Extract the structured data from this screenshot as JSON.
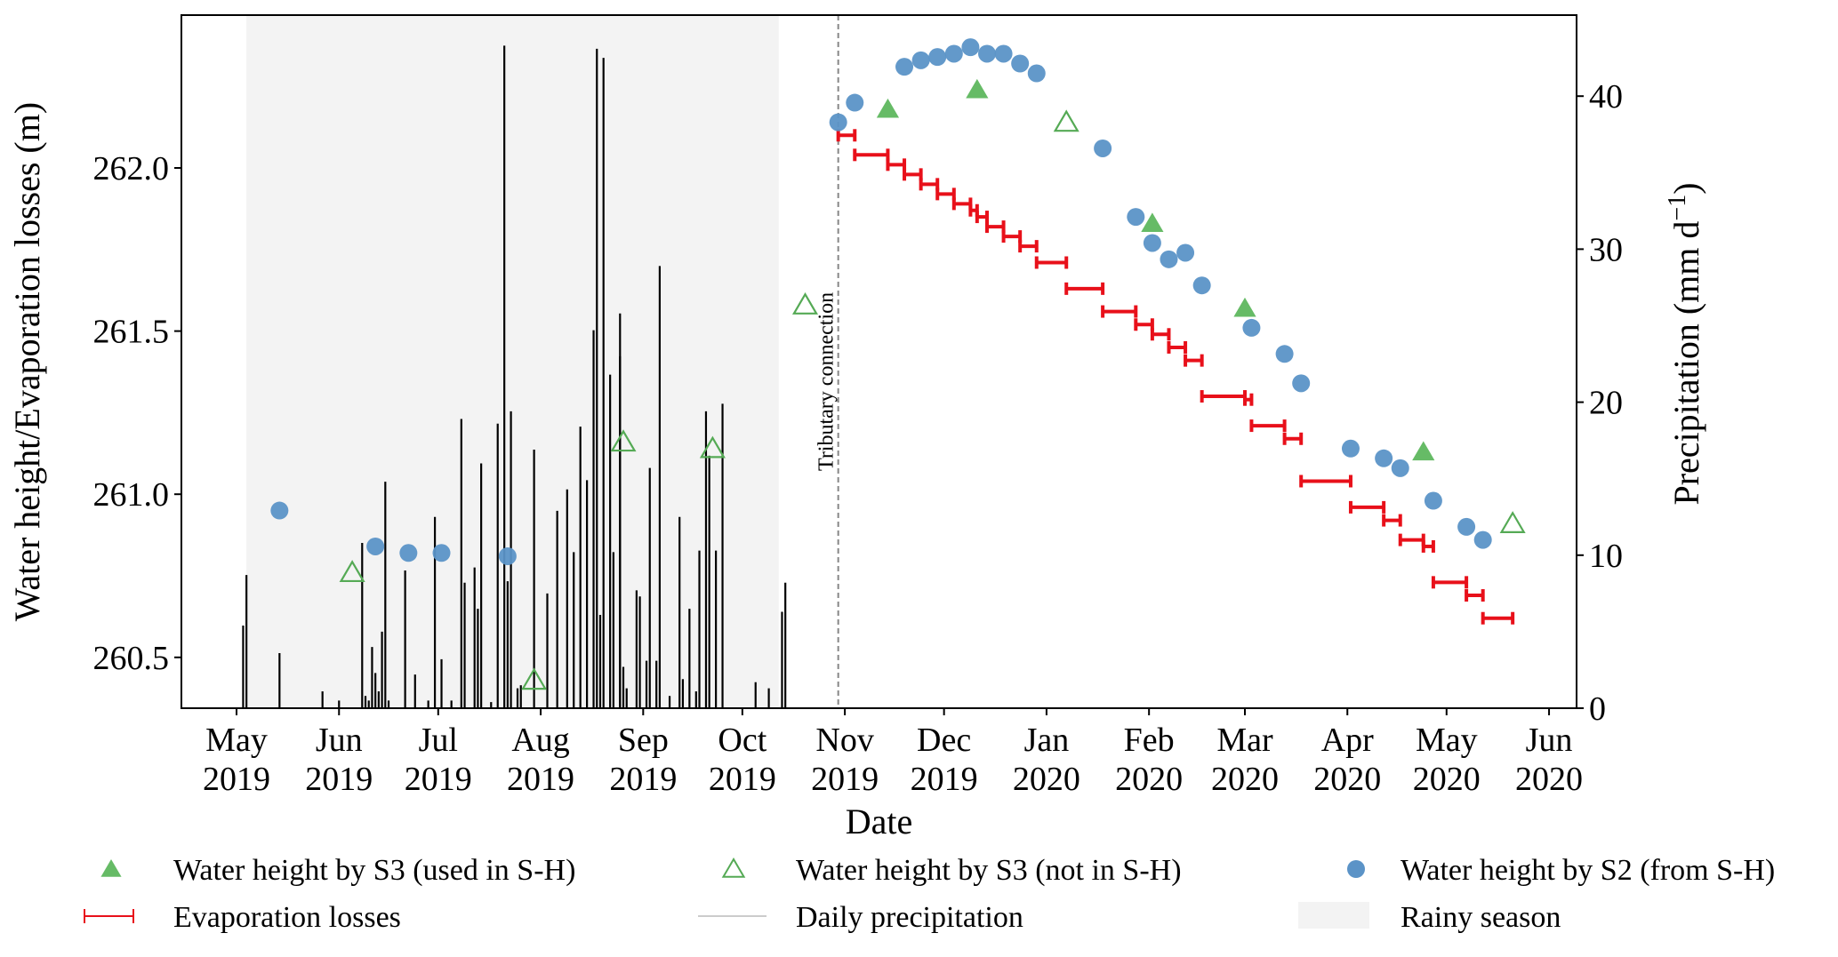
{
  "chart_data": {
    "type": "scatter",
    "title": "",
    "xlabel": "Date",
    "ylabel_left": "Water height/Evaporation losses (m)",
    "ylabel_right": "Precipitation (mm d⁻¹)",
    "ylabel_right_base": "Precipitation (mm d",
    "ylabel_right_sup": "−1",
    "ylabel_right_close": ")",
    "xlim": [
      "2019-04-21",
      "2020-06-09"
    ],
    "ylim_left": [
      260.35,
      262.37
    ],
    "ylim_right": [
      0,
      45
    ],
    "grid": false,
    "x_ticks": [
      {
        "date": "2019-05-01",
        "label1": "May",
        "label2": "2019"
      },
      {
        "date": "2019-06-01",
        "label1": "Jun",
        "label2": "2019"
      },
      {
        "date": "2019-07-01",
        "label1": "Jul",
        "label2": "2019"
      },
      {
        "date": "2019-08-01",
        "label1": "Aug",
        "label2": "2019"
      },
      {
        "date": "2019-09-01",
        "label1": "Sep",
        "label2": "2019"
      },
      {
        "date": "2019-10-01",
        "label1": "Oct",
        "label2": "2019"
      },
      {
        "date": "2019-11-01",
        "label1": "Nov",
        "label2": "2019"
      },
      {
        "date": "2019-12-01",
        "label1": "Dec",
        "label2": "2019"
      },
      {
        "date": "2020-01-01",
        "label1": "Jan",
        "label2": "2020"
      },
      {
        "date": "2020-02-01",
        "label1": "Feb",
        "label2": "2020"
      },
      {
        "date": "2020-03-01",
        "label1": "Mar",
        "label2": "2020"
      },
      {
        "date": "2020-04-01",
        "label1": "Apr",
        "label2": "2020"
      },
      {
        "date": "2020-05-01",
        "label1": "May",
        "label2": "2020"
      },
      {
        "date": "2020-06-01",
        "label1": "Jun",
        "label2": "2020"
      }
    ],
    "y_ticks_left": [
      {
        "value": 260.5,
        "label": "260.5"
      },
      {
        "value": 261.0,
        "label": "261.0"
      },
      {
        "value": 261.5,
        "label": "261.5"
      },
      {
        "value": 262.0,
        "label": "262.0"
      }
    ],
    "y_ticks_right": [
      {
        "value": 0,
        "label": "0"
      },
      {
        "value": 10,
        "label": "10"
      },
      {
        "value": 20,
        "label": "20"
      },
      {
        "value": 30,
        "label": "30"
      },
      {
        "value": 40,
        "label": "40"
      }
    ],
    "rainy_season": {
      "start": "2019-05-04",
      "end": "2019-10-12",
      "color": "#f3f3f3"
    },
    "annotation": {
      "date": "2019-10-30",
      "label": "Tributary connection"
    },
    "colors": {
      "s3_used": "#66bb66",
      "s3_not": "#55aa55",
      "s2": "#5b93c7",
      "evap": "#e8101a",
      "precip": "#000000",
      "legend_precip": "#cccccc"
    },
    "series": [
      {
        "name": "Water height by S3 (used in S-H)",
        "marker": "triangle-filled",
        "axis": "left",
        "points": [
          {
            "date": "2019-11-14",
            "value": 262.18
          },
          {
            "date": "2019-12-11",
            "value": 262.24
          },
          {
            "date": "2020-02-02",
            "value": 261.83
          },
          {
            "date": "2020-03-01",
            "value": 261.57
          },
          {
            "date": "2020-04-24",
            "value": 261.13
          }
        ]
      },
      {
        "name": "Water height by S3 (not in S-H)",
        "marker": "triangle-open",
        "axis": "left",
        "points": [
          {
            "date": "2019-06-05",
            "value": 260.76
          },
          {
            "date": "2019-07-30",
            "value": 260.43
          },
          {
            "date": "2019-08-26",
            "value": 261.16
          },
          {
            "date": "2019-09-22",
            "value": 261.14
          },
          {
            "date": "2019-10-20",
            "value": 261.58
          },
          {
            "date": "2020-01-07",
            "value": 262.14
          },
          {
            "date": "2020-05-21",
            "value": 260.91
          }
        ]
      },
      {
        "name": "Water height by S2 (from S-H)",
        "marker": "circle",
        "axis": "left",
        "points": [
          {
            "date": "2019-05-14",
            "value": 260.95
          },
          {
            "date": "2019-06-12",
            "value": 260.84
          },
          {
            "date": "2019-06-22",
            "value": 260.82
          },
          {
            "date": "2019-07-02",
            "value": 260.82
          },
          {
            "date": "2019-07-22",
            "value": 260.81
          },
          {
            "date": "2019-10-30",
            "value": 262.14
          },
          {
            "date": "2019-11-04",
            "value": 262.2
          },
          {
            "date": "2019-11-19",
            "value": 262.31
          },
          {
            "date": "2019-11-24",
            "value": 262.33
          },
          {
            "date": "2019-11-29",
            "value": 262.34
          },
          {
            "date": "2019-12-04",
            "value": 262.35
          },
          {
            "date": "2019-12-09",
            "value": 262.37
          },
          {
            "date": "2019-12-14",
            "value": 262.35
          },
          {
            "date": "2019-12-19",
            "value": 262.35
          },
          {
            "date": "2019-12-24",
            "value": 262.32
          },
          {
            "date": "2019-12-29",
            "value": 262.29
          },
          {
            "date": "2020-01-18",
            "value": 262.06
          },
          {
            "date": "2020-01-28",
            "value": 261.85
          },
          {
            "date": "2020-02-02",
            "value": 261.77
          },
          {
            "date": "2020-02-07",
            "value": 261.72
          },
          {
            "date": "2020-02-12",
            "value": 261.74
          },
          {
            "date": "2020-02-17",
            "value": 261.64
          },
          {
            "date": "2020-03-03",
            "value": 261.51
          },
          {
            "date": "2020-03-13",
            "value": 261.43
          },
          {
            "date": "2020-03-18",
            "value": 261.34
          },
          {
            "date": "2020-04-02",
            "value": 261.14
          },
          {
            "date": "2020-04-12",
            "value": 261.11
          },
          {
            "date": "2020-04-17",
            "value": 261.08
          },
          {
            "date": "2020-04-27",
            "value": 260.98
          },
          {
            "date": "2020-05-07",
            "value": 260.9
          },
          {
            "date": "2020-05-12",
            "value": 260.86
          }
        ]
      },
      {
        "name": "Evaporation losses",
        "marker": "range",
        "axis": "left",
        "ranges": [
          {
            "start": "2019-10-30",
            "end": "2019-11-04",
            "value": 262.1
          },
          {
            "start": "2019-11-04",
            "end": "2019-11-14",
            "value": 262.04
          },
          {
            "start": "2019-11-14",
            "end": "2019-11-19",
            "value": 262.01
          },
          {
            "start": "2019-11-19",
            "end": "2019-11-24",
            "value": 261.98
          },
          {
            "start": "2019-11-24",
            "end": "2019-11-29",
            "value": 261.95
          },
          {
            "start": "2019-11-29",
            "end": "2019-12-04",
            "value": 261.92
          },
          {
            "start": "2019-12-04",
            "end": "2019-12-09",
            "value": 261.89
          },
          {
            "start": "2019-12-09",
            "end": "2019-12-11",
            "value": 261.87
          },
          {
            "start": "2019-12-11",
            "end": "2019-12-14",
            "value": 261.85
          },
          {
            "start": "2019-12-14",
            "end": "2019-12-19",
            "value": 261.82
          },
          {
            "start": "2019-12-19",
            "end": "2019-12-24",
            "value": 261.79
          },
          {
            "start": "2019-12-24",
            "end": "2019-12-29",
            "value": 261.76
          },
          {
            "start": "2019-12-29",
            "end": "2020-01-07",
            "value": 261.71
          },
          {
            "start": "2020-01-07",
            "end": "2020-01-18",
            "value": 261.63
          },
          {
            "start": "2020-01-18",
            "end": "2020-01-28",
            "value": 261.56
          },
          {
            "start": "2020-01-28",
            "end": "2020-02-02",
            "value": 261.52
          },
          {
            "start": "2020-02-02",
            "end": "2020-02-07",
            "value": 261.49
          },
          {
            "start": "2020-02-07",
            "end": "2020-02-12",
            "value": 261.45
          },
          {
            "start": "2020-02-12",
            "end": "2020-02-17",
            "value": 261.41
          },
          {
            "start": "2020-02-17",
            "end": "2020-03-01",
            "value": 261.3
          },
          {
            "start": "2020-03-01",
            "end": "2020-03-03",
            "value": 261.29
          },
          {
            "start": "2020-03-03",
            "end": "2020-03-13",
            "value": 261.21
          },
          {
            "start": "2020-03-13",
            "end": "2020-03-18",
            "value": 261.17
          },
          {
            "start": "2020-03-18",
            "end": "2020-04-02",
            "value": 261.04
          },
          {
            "start": "2020-04-02",
            "end": "2020-04-12",
            "value": 260.96
          },
          {
            "start": "2020-04-12",
            "end": "2020-04-17",
            "value": 260.92
          },
          {
            "start": "2020-04-17",
            "end": "2020-04-24",
            "value": 260.86
          },
          {
            "start": "2020-04-24",
            "end": "2020-04-27",
            "value": 260.84
          },
          {
            "start": "2020-04-27",
            "end": "2020-05-07",
            "value": 260.73
          },
          {
            "start": "2020-05-07",
            "end": "2020-05-12",
            "value": 260.69
          },
          {
            "start": "2020-05-12",
            "end": "2020-05-21",
            "value": 260.62
          }
        ]
      },
      {
        "name": "Daily precipitation",
        "marker": "stem",
        "axis": "right",
        "points": [
          {
            "date": "2019-05-03",
            "value": 5.4
          },
          {
            "date": "2019-05-04",
            "value": 8.7
          },
          {
            "date": "2019-05-14",
            "value": 3.6
          },
          {
            "date": "2019-05-27",
            "value": 1.1
          },
          {
            "date": "2019-06-01",
            "value": 0.5
          },
          {
            "date": "2019-06-08",
            "value": 10.8
          },
          {
            "date": "2019-06-09",
            "value": 0.8
          },
          {
            "date": "2019-06-10",
            "value": 0.5
          },
          {
            "date": "2019-06-11",
            "value": 4.0
          },
          {
            "date": "2019-06-12",
            "value": 2.3
          },
          {
            "date": "2019-06-13",
            "value": 1.1
          },
          {
            "date": "2019-06-14",
            "value": 5.0
          },
          {
            "date": "2019-06-15",
            "value": 14.8
          },
          {
            "date": "2019-06-16",
            "value": 0.5
          },
          {
            "date": "2019-06-21",
            "value": 9.0
          },
          {
            "date": "2019-06-24",
            "value": 2.2
          },
          {
            "date": "2019-06-28",
            "value": 0.5
          },
          {
            "date": "2019-06-30",
            "value": 12.5
          },
          {
            "date": "2019-07-02",
            "value": 3.2
          },
          {
            "date": "2019-07-05",
            "value": 0.5
          },
          {
            "date": "2019-07-08",
            "value": 18.9
          },
          {
            "date": "2019-07-09",
            "value": 8.2
          },
          {
            "date": "2019-07-12",
            "value": 9.2
          },
          {
            "date": "2019-07-13",
            "value": 6.5
          },
          {
            "date": "2019-07-14",
            "value": 16.0
          },
          {
            "date": "2019-07-17",
            "value": 0.4
          },
          {
            "date": "2019-07-19",
            "value": 18.6
          },
          {
            "date": "2019-07-21",
            "value": 43.3
          },
          {
            "date": "2019-07-22",
            "value": 8.3
          },
          {
            "date": "2019-07-23",
            "value": 19.4
          },
          {
            "date": "2019-07-25",
            "value": 1.3
          },
          {
            "date": "2019-07-26",
            "value": 1.5
          },
          {
            "date": "2019-07-30",
            "value": 16.9
          },
          {
            "date": "2019-08-03",
            "value": 7.5
          },
          {
            "date": "2019-08-06",
            "value": 12.9
          },
          {
            "date": "2019-08-09",
            "value": 14.3
          },
          {
            "date": "2019-08-11",
            "value": 10.2
          },
          {
            "date": "2019-08-13",
            "value": 18.4
          },
          {
            "date": "2019-08-15",
            "value": 14.9
          },
          {
            "date": "2019-08-17",
            "value": 24.7
          },
          {
            "date": "2019-08-18",
            "value": 43.1
          },
          {
            "date": "2019-08-19",
            "value": 6.1
          },
          {
            "date": "2019-08-20",
            "value": 42.5
          },
          {
            "date": "2019-08-22",
            "value": 21.8
          },
          {
            "date": "2019-08-23",
            "value": 10.2
          },
          {
            "date": "2019-08-25",
            "value": 23.0
          },
          {
            "date": "2019-08-25",
            "value": 25.8
          },
          {
            "date": "2019-08-26",
            "value": 2.7
          },
          {
            "date": "2019-08-27",
            "value": 1.3
          },
          {
            "date": "2019-08-30",
            "value": 7.7
          },
          {
            "date": "2019-08-31",
            "value": 7.3
          },
          {
            "date": "2019-09-02",
            "value": 3.1
          },
          {
            "date": "2019-09-03",
            "value": 15.7
          },
          {
            "date": "2019-09-05",
            "value": 3.1
          },
          {
            "date": "2019-09-06",
            "value": 28.9
          },
          {
            "date": "2019-09-09",
            "value": 0.8
          },
          {
            "date": "2019-09-12",
            "value": 12.5
          },
          {
            "date": "2019-09-13",
            "value": 1.9
          },
          {
            "date": "2019-09-15",
            "value": 6.5
          },
          {
            "date": "2019-09-17",
            "value": 1.1
          },
          {
            "date": "2019-09-18",
            "value": 10.3
          },
          {
            "date": "2019-09-20",
            "value": 19.4
          },
          {
            "date": "2019-09-21",
            "value": 16.5
          },
          {
            "date": "2019-09-23",
            "value": 10.3
          },
          {
            "date": "2019-09-25",
            "value": 19.9
          },
          {
            "date": "2019-10-05",
            "value": 1.7
          },
          {
            "date": "2019-10-09",
            "value": 1.3
          },
          {
            "date": "2019-10-13",
            "value": 6.3
          },
          {
            "date": "2019-10-14",
            "value": 8.2
          }
        ]
      }
    ],
    "legend": {
      "placement": "bottom",
      "entries": [
        {
          "label": "Water height by S3 (used in S-H)",
          "icon": "triangle-filled"
        },
        {
          "label": "Water height by S3 (not in S-H)",
          "icon": "triangle-open"
        },
        {
          "label": "Water height by S2 (from S-H)",
          "icon": "circle"
        },
        {
          "label": "Evaporation losses",
          "icon": "range"
        },
        {
          "label": "Daily precipitation",
          "icon": "line"
        },
        {
          "label": "Rainy season",
          "icon": "patch"
        }
      ]
    }
  }
}
